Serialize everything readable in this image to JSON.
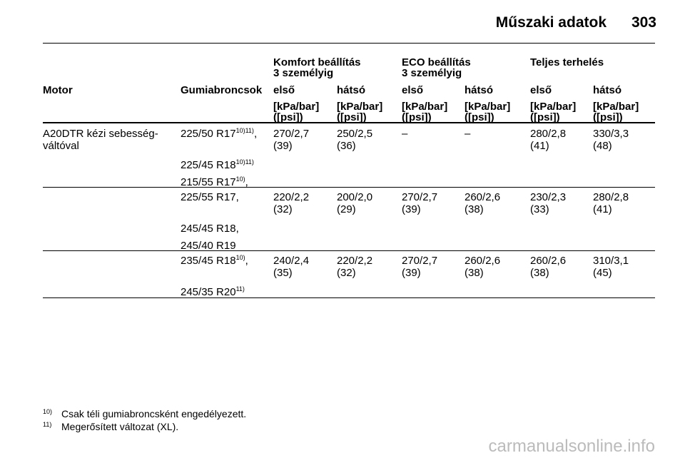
{
  "header": {
    "title": "Műszaki adatok",
    "page": "303"
  },
  "table": {
    "groups": [
      {
        "lines": [
          "Komfort beállítás",
          "3 személyig"
        ]
      },
      {
        "lines": [
          "ECO beállítás",
          "3 személyig"
        ]
      },
      {
        "lines": [
          "Teljes terhelés"
        ]
      }
    ],
    "columns": [
      "Motor",
      "Gumiabroncsok",
      "első",
      "hátsó",
      "első",
      "hátsó",
      "első",
      "hátsó"
    ],
    "units": [
      [
        "[kPa/bar]",
        "([psi])"
      ],
      [
        "[kPa/bar]",
        "([psi])"
      ],
      [
        "[kPa/bar]",
        "([psi])"
      ],
      [
        "[kPa/bar]",
        "([psi])"
      ],
      [
        "[kPa/bar]",
        "([psi])"
      ],
      [
        "[kPa/bar]",
        "([psi])"
      ]
    ],
    "rows": [
      {
        "motor": [
          "A20DTR kézi sebesség-",
          "váltóval"
        ],
        "tires": [
          {
            "text": "225/50 R17",
            "sup": "10)11)",
            "after": ","
          },
          {
            "text": "225/45 R18",
            "sup": "10)11)"
          },
          {
            "text": "215/55 R17",
            "sup": "10)",
            "after": ","
          }
        ],
        "values": [
          [
            "270/2,7",
            "(39)"
          ],
          [
            "250/2,5",
            "(36)"
          ],
          [
            "–"
          ],
          [
            "–"
          ],
          [
            "280/2,8",
            "(41)"
          ],
          [
            "330/3,3",
            "(48)"
          ]
        ]
      },
      {
        "tires": [
          {
            "text": "225/55 R17,"
          },
          {
            "text": "245/45 R18,"
          },
          {
            "text": "245/40 R19"
          }
        ],
        "values": [
          [
            "220/2,2",
            "(32)"
          ],
          [
            "200/2,0",
            "(29)"
          ],
          [
            "270/2,7",
            "(39)"
          ],
          [
            "260/2,6",
            "(38)"
          ],
          [
            "230/2,3",
            "(33)"
          ],
          [
            "280/2,8",
            "(41)"
          ]
        ]
      },
      {
        "tires": [
          {
            "text": "235/45 R18",
            "sup": "10)",
            "after": ","
          },
          {
            "text": "245/35 R20",
            "sup": "11)"
          }
        ],
        "values": [
          [
            "240/2,4",
            "(35)"
          ],
          [
            "220/2,2",
            "(32)"
          ],
          [
            "270/2,7",
            "(39)"
          ],
          [
            "260/2,6",
            "(38)"
          ],
          [
            "260/2,6",
            "(38)"
          ],
          [
            "310/3,1",
            "(45)"
          ]
        ]
      }
    ]
  },
  "footnotes": [
    {
      "mark": "10)",
      "text": "Csak téli gumiabroncsként engedélyezett."
    },
    {
      "mark": "11)",
      "text": "Megerősített változat (XL)."
    }
  ],
  "watermark": "carmanualsonline.info"
}
